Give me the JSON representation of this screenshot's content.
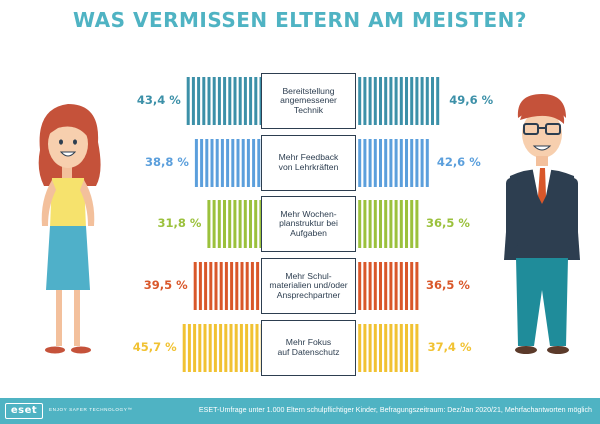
{
  "title": "WAS VERMISSEN ELTERN AM MEISTEN?",
  "chart_data": {
    "type": "bar",
    "title": "WAS VERMISSEN ELTERN AM MEISTEN?",
    "categories": [
      "Bereitstellung\nangemessener\nTechnik",
      "Mehr Feedback\nvon Lehrkräften",
      "Mehr Wochen-\nplanstruktur bei\nAufgaben",
      "Mehr Schul-\nmaterialien und/oder\nAnsprechpartner",
      "Mehr Fokus\nauf Datenschutz"
    ],
    "series": [
      {
        "values": [
          43.4,
          38.8,
          31.8,
          39.5,
          45.7
        ]
      },
      {
        "values": [
          49.6,
          42.6,
          36.5,
          36.5,
          37.4
        ]
      }
    ],
    "value_labels": {
      "left": [
        "43,4 %",
        "38,8 %",
        "31,8 %",
        "39,5 %",
        "45,7 %"
      ],
      "right": [
        "49,6 %",
        "42,6 %",
        "36,5 %",
        "36,5 %",
        "37,4 %"
      ]
    },
    "row_colors": [
      "#3c90a8",
      "#5b9fdc",
      "#9bc13c",
      "#d9572a",
      "#f1c232"
    ]
  },
  "footer": {
    "logo": "eset",
    "tagline": "ENJOY SAFER TECHNOLOGY™",
    "note": "ESET-Umfrage unter 1.000 Eltern schulpflichtiger Kinder, Befragungszeitraum: Dez/Jan 2020/21, Mehrfachantworten möglich",
    "color": "#4fb3c3"
  }
}
